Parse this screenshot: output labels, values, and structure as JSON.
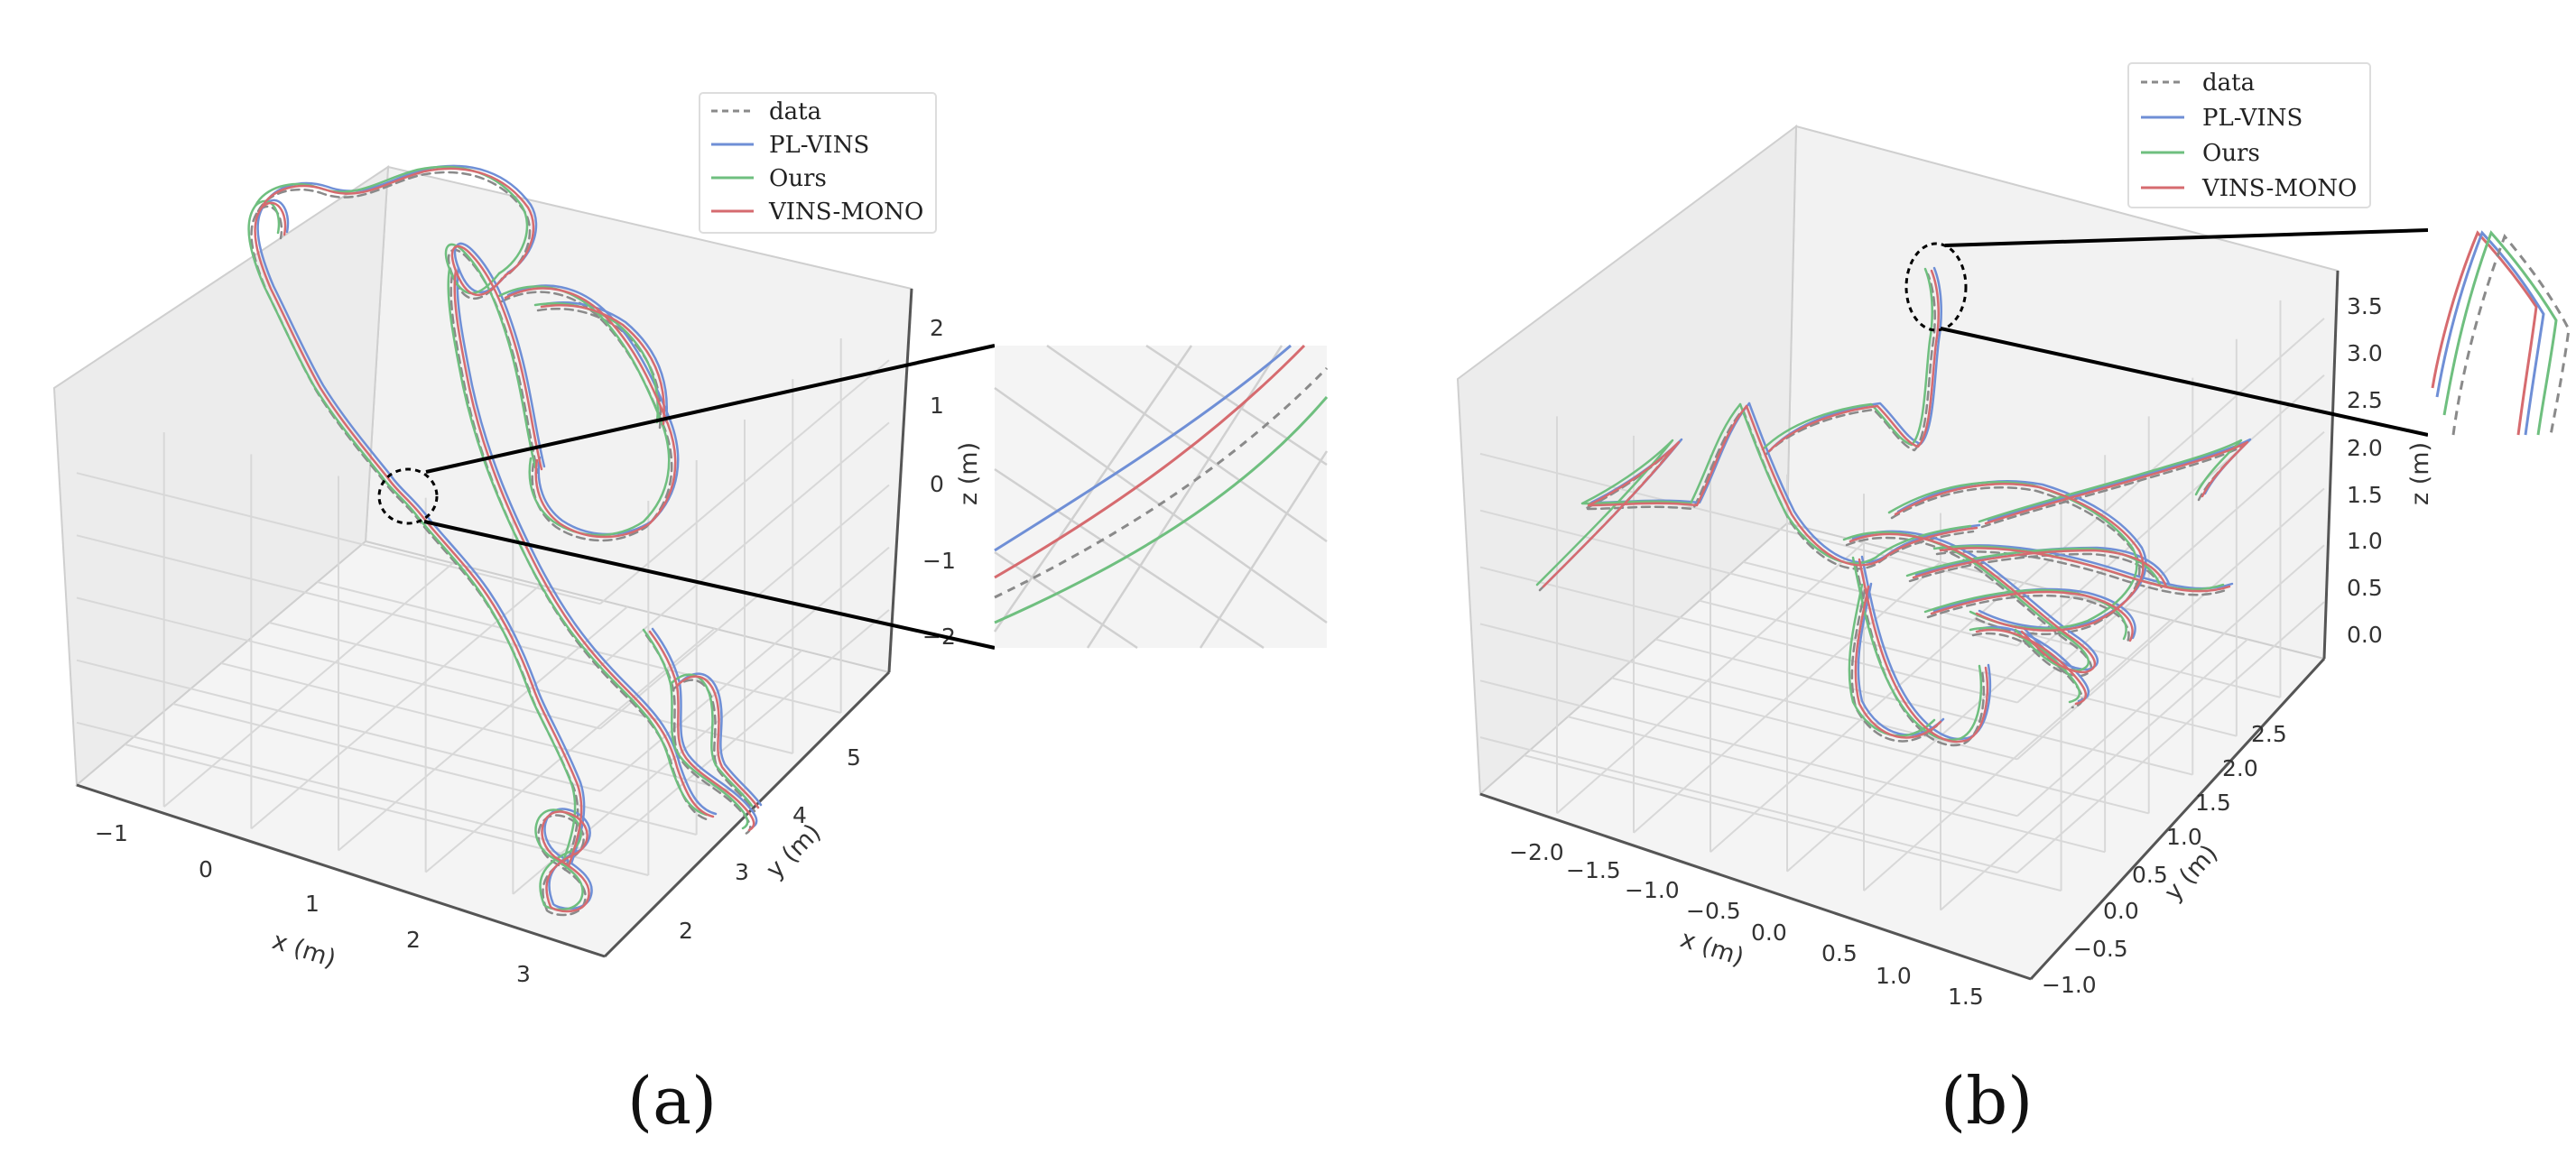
{
  "colors": {
    "data": "#8a8a8a",
    "pl_vins": "#6f8fd6",
    "ours": "#6fbf7f",
    "vins_mono": "#d66b6f",
    "pane": "#f2f2f2",
    "grid": "#d8d8d8"
  },
  "chart_data": [
    {
      "type": "line",
      "panel_label": "(a)",
      "xlabel": "x (m)",
      "ylabel": "y (m)",
      "zlabel": "z (m)",
      "x_ticks": [
        "−1",
        "0",
        "1",
        "2",
        "3"
      ],
      "y_ticks": [
        "2",
        "3",
        "4",
        "5"
      ],
      "z_ticks": [
        "2",
        "1",
        "0",
        "−1",
        "−2"
      ],
      "legend": {
        "position": "top-right",
        "entries": [
          {
            "label": "data",
            "style": "dashed"
          },
          {
            "label": "PL-VINS",
            "style": "solid"
          },
          {
            "label": "Ours",
            "style": "solid"
          },
          {
            "label": "VINS-MONO",
            "style": "solid"
          }
        ]
      },
      "series": [
        {
          "name": "data"
        },
        {
          "name": "PL-VINS"
        },
        {
          "name": "Ours"
        },
        {
          "name": "VINS-MONO"
        }
      ],
      "inset": "zoomed view of trajectory detail"
    },
    {
      "type": "line",
      "panel_label": "(b)",
      "xlabel": "x (m)",
      "ylabel": "y (m)",
      "zlabel": "z (m)",
      "x_ticks": [
        "−2.0",
        "−1.5",
        "−1.0",
        "−0.5",
        "0.0",
        "0.5",
        "1.0",
        "1.5"
      ],
      "y_ticks": [
        "−1.0",
        "−0.5",
        "0.0",
        "0.5",
        "1.0",
        "1.5",
        "2.0",
        "2.5"
      ],
      "z_ticks": [
        "3.5",
        "3.0",
        "2.5",
        "2.0",
        "1.5",
        "1.0",
        "0.5",
        "0.0"
      ],
      "legend": {
        "position": "top-right",
        "entries": [
          {
            "label": "data",
            "style": "dashed"
          },
          {
            "label": "PL-VINS",
            "style": "solid"
          },
          {
            "label": "Ours",
            "style": "solid"
          },
          {
            "label": "VINS-MONO",
            "style": "solid"
          }
        ]
      },
      "series": [
        {
          "name": "data"
        },
        {
          "name": "PL-VINS"
        },
        {
          "name": "Ours"
        },
        {
          "name": "VINS-MONO"
        }
      ],
      "inset": "zoomed view of trajectory detail"
    }
  ]
}
